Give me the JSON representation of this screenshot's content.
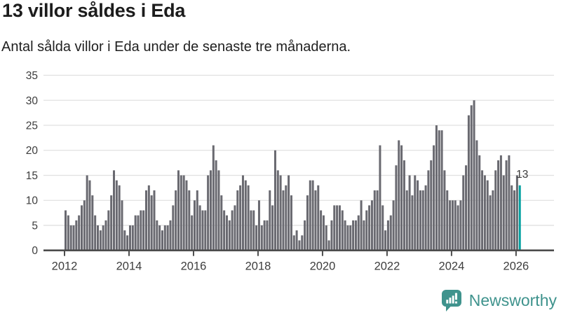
{
  "header": {
    "title": "13 villor såldes i Eda",
    "subtitle": "Antal sålda villor i Eda under de senaste tre månaderna."
  },
  "chart_data": {
    "type": "bar",
    "title": "13 villor såldes i Eda",
    "subtitle": "Antal sålda villor i Eda under de senaste tre månaderna.",
    "x_start": "2012-01",
    "x_tick_labels": [
      "2012",
      "2014",
      "2016",
      "2018",
      "2020",
      "2022",
      "2024",
      "2026"
    ],
    "x_tick_month_indices": [
      0,
      24,
      48,
      72,
      96,
      120,
      144,
      168
    ],
    "y_ticks": [
      0,
      5,
      10,
      15,
      20,
      25,
      30,
      35
    ],
    "ylim": [
      0,
      35
    ],
    "grid": true,
    "values": [
      8,
      7,
      5,
      5,
      6,
      7,
      9,
      10,
      15,
      14,
      11,
      7,
      5,
      4,
      5,
      6,
      8,
      11,
      16,
      14,
      13,
      10,
      4,
      3,
      5,
      5,
      7,
      7,
      8,
      8,
      12,
      13,
      11,
      12,
      6,
      5,
      4,
      5,
      5,
      6,
      9,
      12,
      16,
      15,
      15,
      14,
      12,
      7,
      10,
      12,
      9,
      8,
      8,
      15,
      16,
      21,
      18,
      16,
      11,
      8,
      7,
      6,
      8,
      9,
      12,
      13,
      15,
      14,
      13,
      8,
      8,
      5,
      10,
      5,
      6,
      6,
      12,
      9,
      20,
      16,
      15,
      12,
      13,
      15,
      11,
      3,
      4,
      2,
      3,
      6,
      11,
      14,
      14,
      12,
      13,
      8,
      7,
      5,
      2,
      6,
      9,
      9,
      9,
      8,
      6,
      5,
      5,
      6,
      6,
      7,
      10,
      6,
      8,
      9,
      10,
      12,
      12,
      21,
      9,
      4,
      6,
      7,
      10,
      17,
      22,
      21,
      18,
      12,
      15,
      11,
      15,
      14,
      12,
      12,
      13,
      16,
      18,
      21,
      25,
      24,
      24,
      16,
      12,
      10,
      10,
      10,
      9,
      10,
      15,
      17,
      27,
      29,
      30,
      22,
      19,
      16,
      15,
      14,
      11,
      12,
      16,
      18,
      19,
      15,
      18,
      19,
      13,
      12,
      15,
      13
    ],
    "highlight_index": 169,
    "highlight_value_label": "13",
    "colors": {
      "bar": "#696970",
      "highlight": "#02a0a0",
      "grid": "#e0e0e0",
      "axis": "#4d4d4d",
      "tick_label": "#3d3d3d",
      "annotation": "#3a3a3a"
    }
  },
  "footer": {
    "brand": "Newsworthy",
    "logo_icon": "bar-chart-speech-bubble-icon",
    "brand_color": "#3f938d"
  }
}
